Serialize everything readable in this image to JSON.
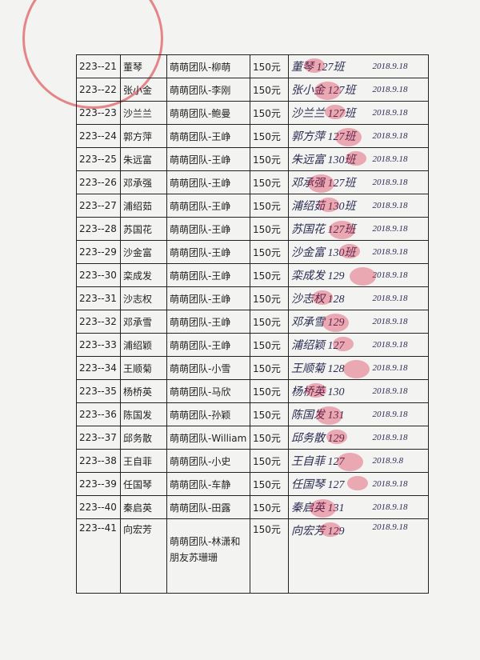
{
  "table": {
    "rows": [
      [
        "223--21",
        "董琴",
        "萌萌团队-柳萌",
        "150元",
        "董琴 127班",
        "2018.9.18"
      ],
      [
        "223--22",
        "张小金",
        "萌萌团队-李刚",
        "150元",
        "张小金 127班",
        "2018.9.18"
      ],
      [
        "223--23",
        "沙兰兰",
        "萌萌团队-鲍曼",
        "150元",
        "沙兰兰 127班",
        "2018.9.18"
      ],
      [
        "223--24",
        "郭方萍",
        "萌萌团队-王峥",
        "150元",
        "郭方萍 127班",
        "2018.9.18"
      ],
      [
        "223--25",
        "朱远富",
        "萌萌团队-王峥",
        "150元",
        "朱远富 130班",
        "2018.9.18"
      ],
      [
        "223--26",
        "邓承强",
        "萌萌团队-王峥",
        "150元",
        "邓承强 127班",
        "2018.9.18"
      ],
      [
        "223--27",
        "浦绍茹",
        "萌萌团队-王峥",
        "150元",
        "浦绍茹 130班",
        "2018.9.18"
      ],
      [
        "223--28",
        "苏国花",
        "萌萌团队-王峥",
        "150元",
        "苏国花 127班",
        "2018.9.18"
      ],
      [
        "223--29",
        "沙金富",
        "萌萌团队-王峥",
        "150元",
        "沙金富 130班",
        "2018.9.18"
      ],
      [
        "223--30",
        "栾成发",
        "萌萌团队-王峥",
        "150元",
        "栾成发 129",
        "2018.9.18"
      ],
      [
        "223--31",
        "沙志权",
        "萌萌团队-王峥",
        "150元",
        "沙志权 128",
        "2018.9.18"
      ],
      [
        "223--32",
        "邓承雪",
        "萌萌团队-王峥",
        "150元",
        "邓承雪 129",
        "2018.9.18"
      ],
      [
        "223--33",
        "浦绍颖",
        "萌萌团队-王峥",
        "150元",
        "浦绍颖 127",
        "2018.9.18"
      ],
      [
        "223--34",
        "王顺菊",
        "萌萌团队-小雪",
        "150元",
        "王顺菊 128",
        "2018.9.18"
      ],
      [
        "223--35",
        "杨桥英",
        "萌萌团队-马欣",
        "150元",
        "杨桥英 130",
        "2018.9.18"
      ],
      [
        "223--36",
        "陈国发",
        "萌萌团队-孙颖",
        "150元",
        "陈国发 131",
        "2018.9.18"
      ],
      [
        "223--37",
        "邱务散",
        "萌萌团队-William",
        "150元",
        "邱务散 129",
        "2018.9.18"
      ],
      [
        "223--38",
        "王自菲",
        "萌萌团队-小史",
        "150元",
        "王自菲 127",
        "2018.9.8"
      ],
      [
        "223--39",
        "任国琴",
        "萌萌团队-车静",
        "150元",
        "任国琴 127",
        "2018.9.18"
      ],
      [
        "223--40",
        "秦启英",
        "萌萌团队-田露",
        "150元",
        "秦启英 131",
        "2018.9.18"
      ],
      [
        "223--41",
        "向宏芳",
        "萌萌团队-林潇和朋友苏珊珊",
        "150元",
        "向宏芳 129",
        "2018.9.18"
      ]
    ]
  }
}
